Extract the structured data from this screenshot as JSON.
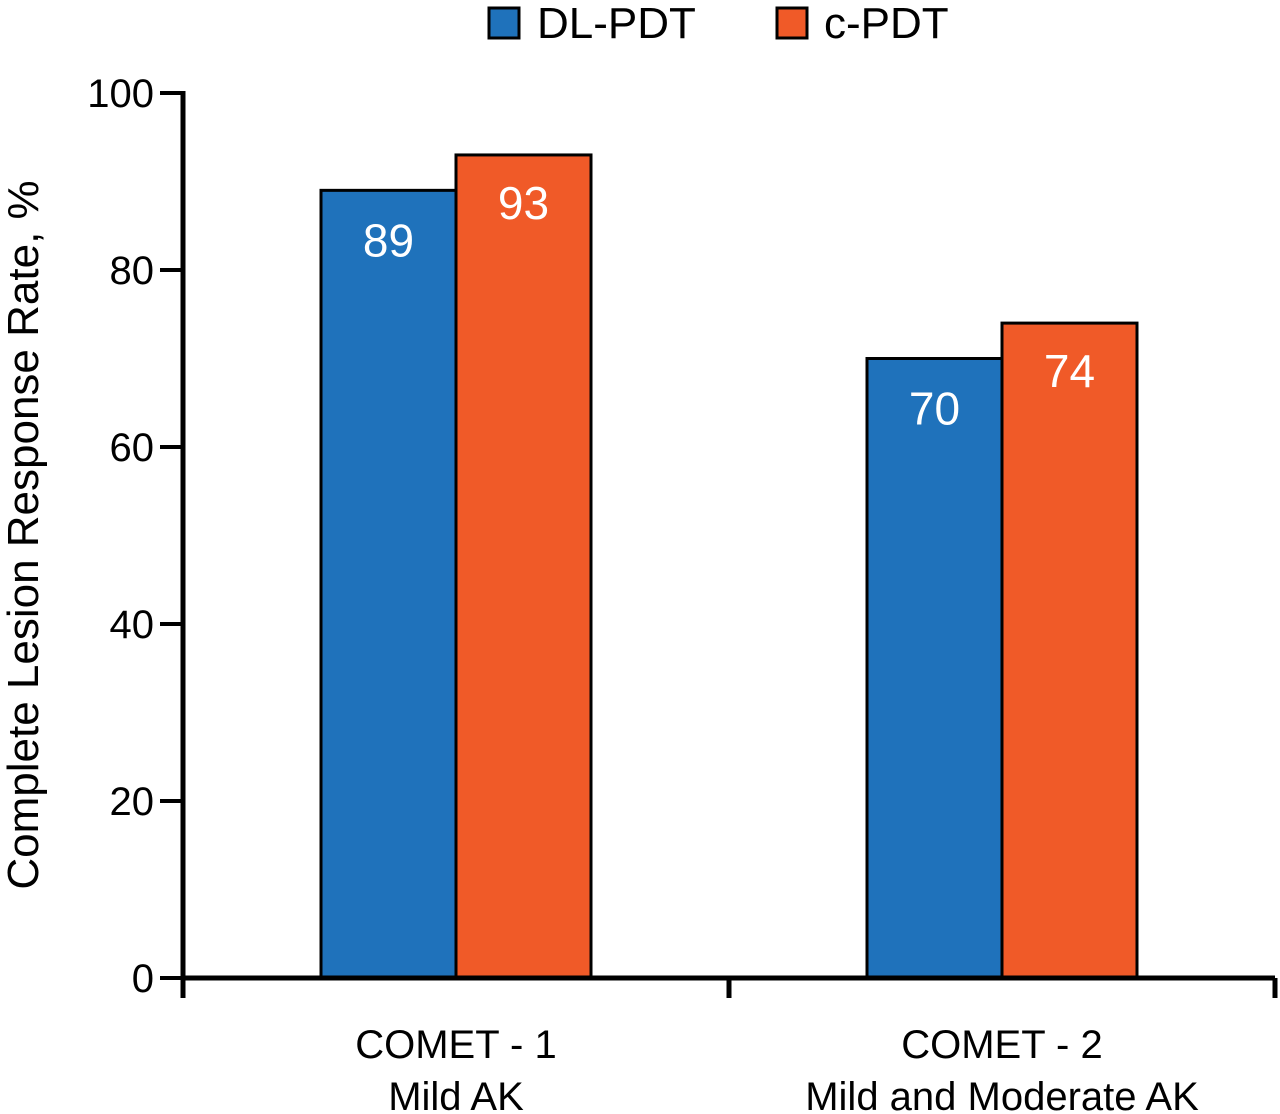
{
  "chart_data": {
    "type": "bar",
    "title": "",
    "xlabel": "",
    "ylabel": "Complete Lesion Response Rate, %",
    "ylim": [
      0,
      100
    ],
    "yticks": [
      "0",
      "20",
      "40",
      "60",
      "80",
      "100"
    ],
    "categories": [
      {
        "line1": "COMET - 1",
        "line2": "Mild AK"
      },
      {
        "line1": "COMET - 2",
        "line2": "Mild and Moderate AK"
      }
    ],
    "series": [
      {
        "name": "DL-PDT",
        "color": "#1f72bb",
        "values": [
          89,
          70
        ],
        "labels": [
          "89",
          "70"
        ]
      },
      {
        "name": "c-PDT",
        "color": "#f05a28",
        "values": [
          93,
          74
        ],
        "labels": [
          "93",
          "74"
        ]
      }
    ],
    "legend_position": "top-center",
    "grid": false
  }
}
